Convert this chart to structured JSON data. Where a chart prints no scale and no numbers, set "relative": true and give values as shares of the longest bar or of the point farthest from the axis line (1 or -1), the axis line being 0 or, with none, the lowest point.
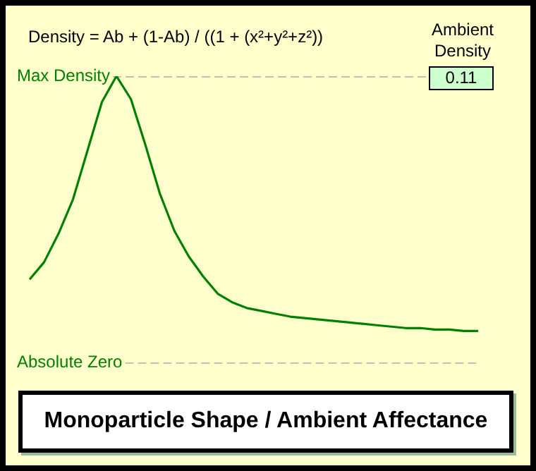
{
  "chart_data": {
    "type": "line",
    "title": "Monoparticle Shape / Ambient Affectance",
    "subtitle": "Density = Ab + (1-Ab) / ((1 + (x²+y²+z²))",
    "relative": true,
    "categories": [
      null,
      null,
      null,
      null,
      null,
      null,
      null,
      null,
      null,
      null,
      null,
      null,
      null,
      null,
      null,
      null,
      null,
      null,
      null,
      null,
      null,
      null,
      null,
      null,
      null,
      null,
      null,
      null,
      null,
      null,
      null,
      null
    ],
    "series": [
      {
        "color": "#008000",
        "values": [
          0.29,
          0.35,
          0.45,
          0.57,
          0.74,
          0.91,
          1.0,
          0.92,
          0.76,
          0.59,
          0.46,
          0.37,
          0.3,
          0.24,
          0.21,
          0.19,
          0.18,
          0.17,
          0.16,
          0.155,
          0.15,
          0.145,
          0.14,
          0.135,
          0.13,
          0.125,
          0.12,
          0.12,
          0.115,
          0.115,
          0.11,
          0.11
        ]
      }
    ],
    "ref_lines": [
      {
        "axis": "y",
        "value": 1,
        "label": "Max Density",
        "color": "#c0c0c0",
        "line_style": "dashed"
      },
      {
        "axis": "y",
        "value": 0,
        "label": "Absolute Zero",
        "color": "#c0c0c0",
        "line_style": "dashed"
      }
    ],
    "annotations": [
      "Ambient Density",
      "0.11"
    ],
    "legend": false,
    "marker": "none",
    "line_style": "solid"
  }
}
